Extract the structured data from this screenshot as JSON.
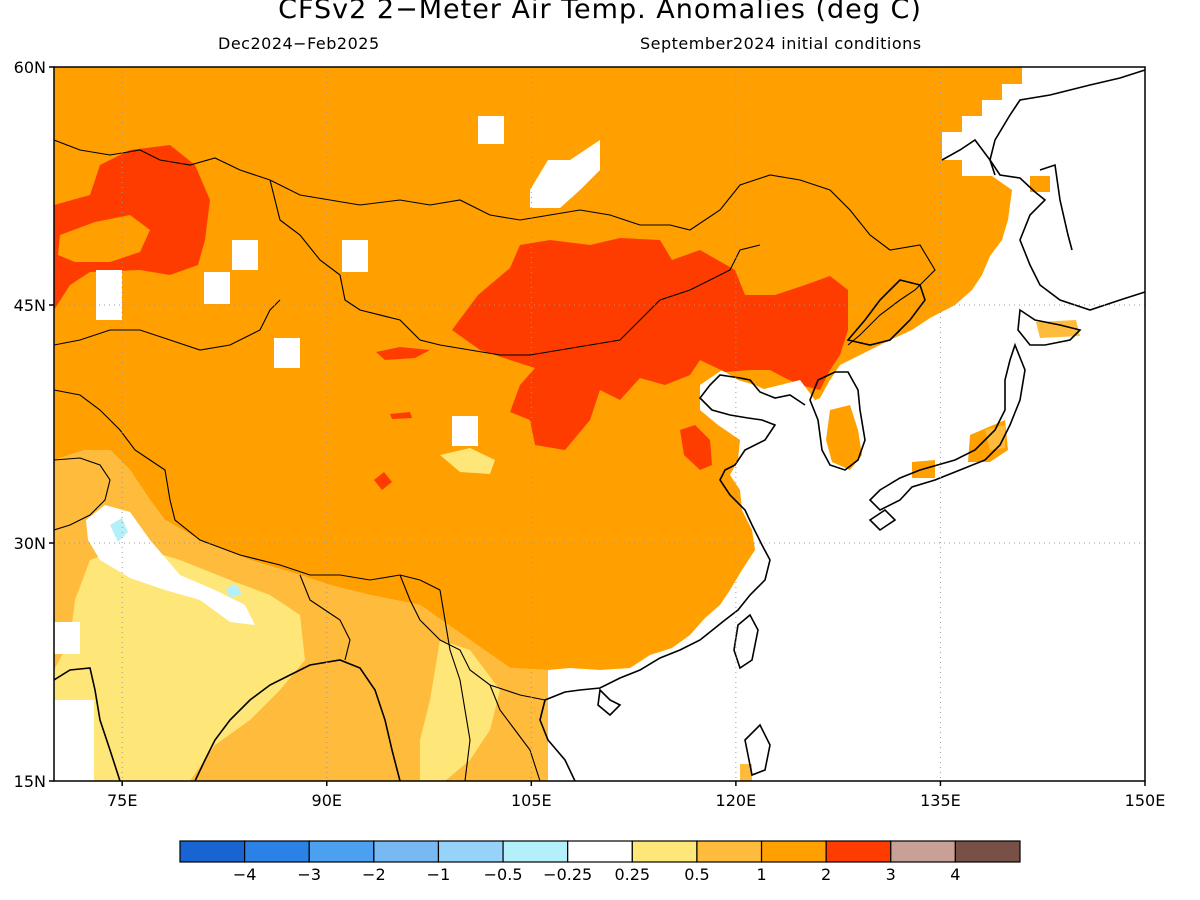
{
  "title": "CFSv2 2−Meter Air Temp. Anomalies (deg C)",
  "subtitle_left": "Dec2024−Feb2025",
  "subtitle_right": "September2024 initial conditions",
  "map": {
    "lon_range": [
      70,
      150
    ],
    "lat_range": [
      15,
      60
    ],
    "lat_ticks": [
      {
        "value": 15,
        "label": "15N"
      },
      {
        "value": 30,
        "label": "30N"
      },
      {
        "value": 45,
        "label": "45N"
      },
      {
        "value": 60,
        "label": "60N"
      }
    ],
    "lon_ticks": [
      {
        "value": 75,
        "label": "75E"
      },
      {
        "value": 90,
        "label": "90E"
      },
      {
        "value": 105,
        "label": "105E"
      },
      {
        "value": 120,
        "label": "120E"
      },
      {
        "value": 135,
        "label": "135E"
      },
      {
        "value": 150,
        "label": "150E"
      }
    ],
    "gridlines": "dotted"
  },
  "colorbar": {
    "colors": [
      "#1764d2",
      "#2a82e6",
      "#4ba0f0",
      "#78b9f4",
      "#97d2f9",
      "#b4f0fa",
      "#ffffff",
      "#ffe678",
      "#ffbb3c",
      "#ffa000",
      "#ff3c00",
      "#c8a096",
      "#785046"
    ],
    "labels": [
      "−4",
      "−3",
      "−2",
      "−1",
      "−0.5",
      "−0.25",
      "0.25",
      "0.5",
      "1",
      "2",
      "3",
      "4"
    ]
  },
  "legend_colors": {
    "white": "#ffffff",
    "light_blue": "#b4f0fa",
    "yellow": "#ffe678",
    "light_orange": "#ffbb3c",
    "orange": "#ffa000",
    "red": "#ff3c00"
  }
}
